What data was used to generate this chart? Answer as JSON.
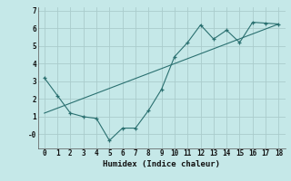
{
  "xlabel": "Humidex (Indice chaleur)",
  "bg_color": "#c5e8e8",
  "grid_color": "#aacccc",
  "line_color": "#2a7070",
  "line1_x": [
    0,
    1,
    2,
    3,
    4,
    5,
    6,
    7,
    8,
    9,
    10,
    11,
    12,
    13,
    14,
    15,
    16,
    17,
    18
  ],
  "line1_y": [
    3.2,
    2.2,
    1.2,
    1.0,
    0.9,
    -0.35,
    0.35,
    0.35,
    1.35,
    2.55,
    4.4,
    5.2,
    6.2,
    5.4,
    5.9,
    5.2,
    6.35,
    6.3,
    6.25
  ],
  "trend_x": [
    0,
    18
  ],
  "trend_y": [
    1.2,
    6.25
  ],
  "ylim": [
    -0.8,
    7.2
  ],
  "xlim": [
    -0.5,
    18.5
  ],
  "yticks": [
    0,
    1,
    2,
    3,
    4,
    5,
    6,
    7
  ],
  "ytick_labels": [
    "-0",
    "1",
    "2",
    "3",
    "4",
    "5",
    "6",
    "7"
  ],
  "xticks": [
    0,
    1,
    2,
    3,
    4,
    5,
    6,
    7,
    8,
    9,
    10,
    11,
    12,
    13,
    14,
    15,
    16,
    17,
    18
  ]
}
